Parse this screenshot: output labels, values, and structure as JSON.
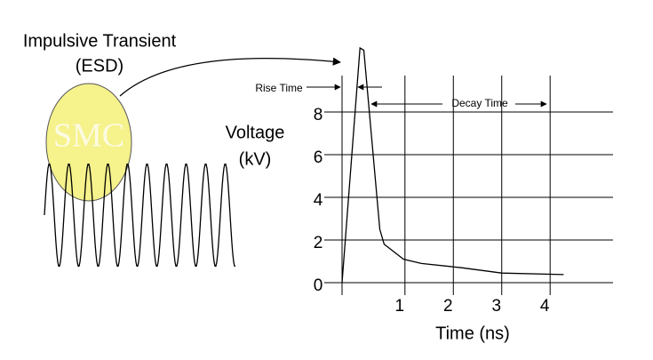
{
  "chart_data": {
    "type": "line",
    "title": [
      "Impulsive Transient",
      "(ESD)"
    ],
    "watermark": "SMC",
    "ylabel": [
      "Voltage",
      "(kV)"
    ],
    "xlabel": "Time  (ns)",
    "annotations": {
      "rise": "Rise Time",
      "decay": "Decay Time"
    },
    "x": [
      -0.3,
      0.07,
      0.15,
      0.48,
      0.57,
      0.97,
      1.34,
      2.17,
      3.0,
      4.28
    ],
    "series": [
      {
        "color": "#000000",
        "values": [
          0,
          11,
          10.9,
          2.5,
          1.8,
          1.1,
          0.9,
          0.7,
          0.45,
          0.38
        ]
      }
    ],
    "xlim": [
      -0.3,
      5.3
    ],
    "xticks": [
      1,
      2,
      3,
      4
    ],
    "ylim": [
      0,
      11
    ],
    "yticks": [
      0,
      2,
      4,
      6,
      8
    ],
    "grid": true
  }
}
